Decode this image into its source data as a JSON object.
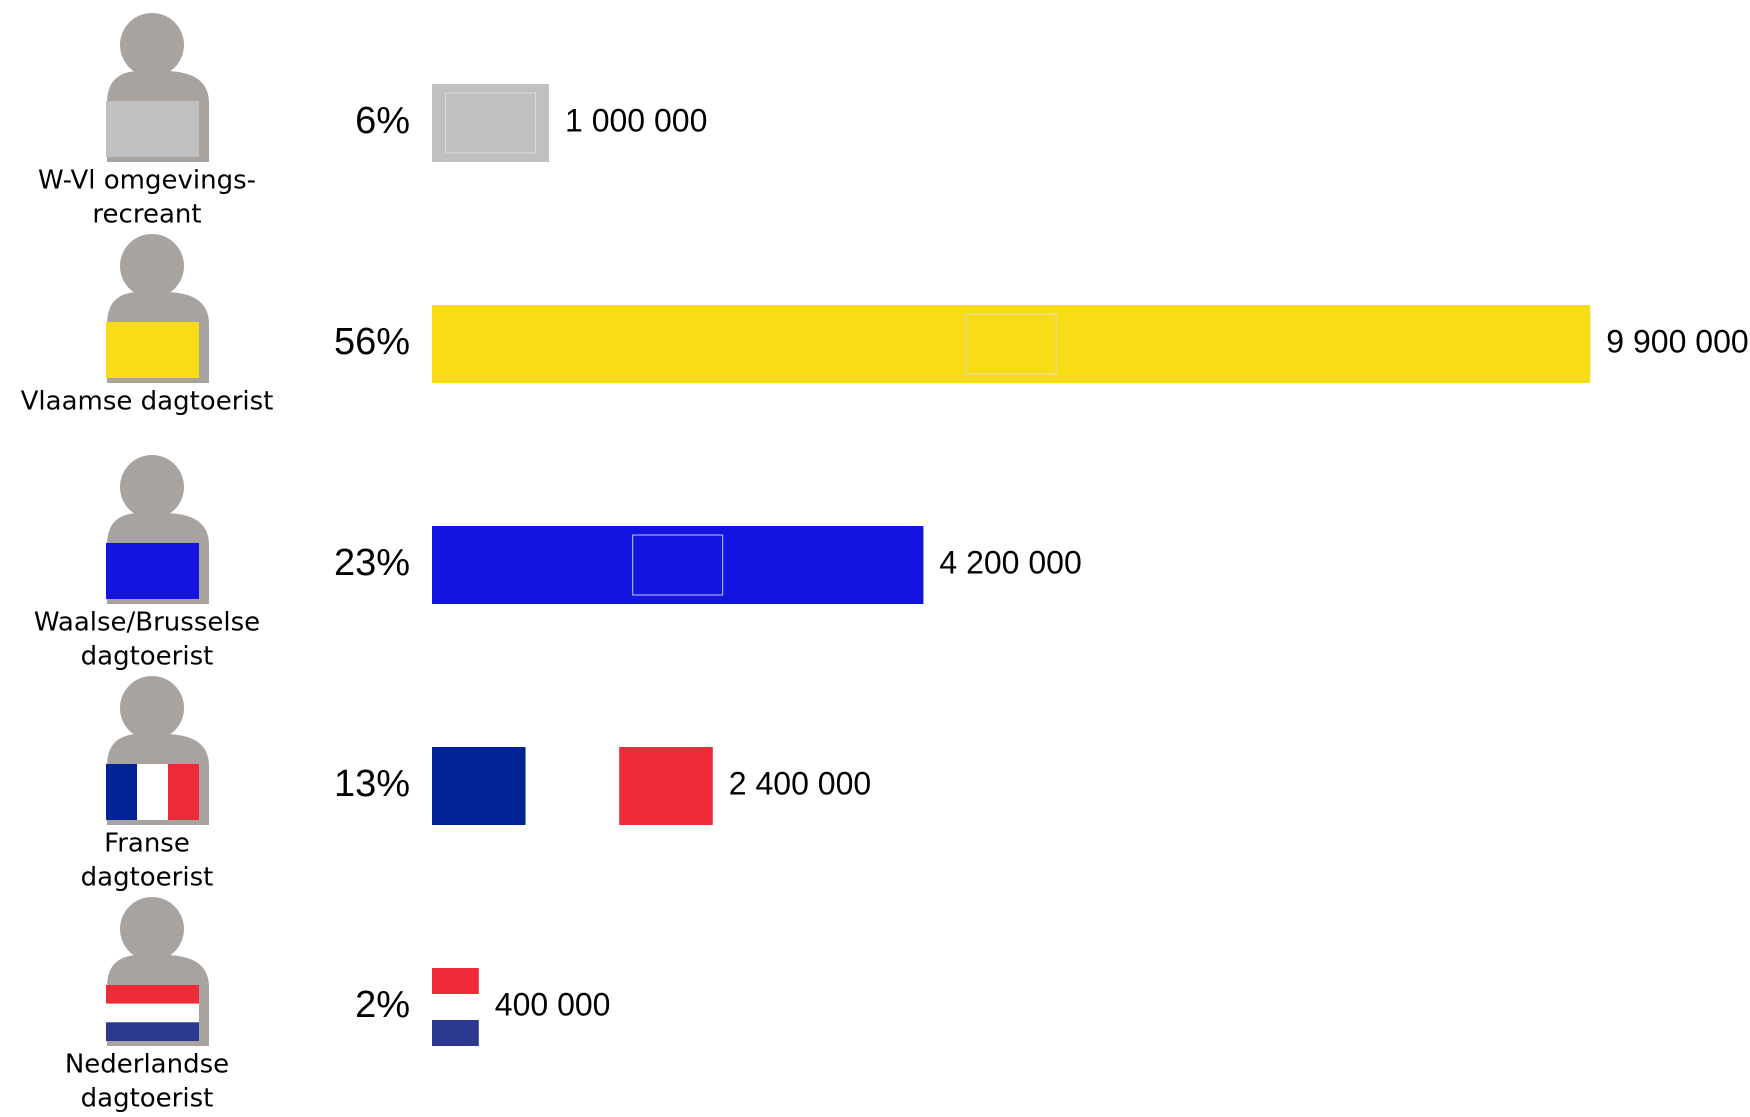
{
  "chart_data": {
    "type": "bar",
    "categories": [
      [
        "W-Vl omgevings-",
        "recreant"
      ],
      [
        "Vlaamse dagtoerist"
      ],
      [
        "Waalse/Brusselse",
        "dagtoerist"
      ],
      [
        "Franse",
        "dagtoerist"
      ],
      [
        "Nederlandse",
        "dagtoerist"
      ]
    ],
    "values": [
      1000000,
      9900000,
      4200000,
      2400000,
      400000
    ],
    "value_labels": [
      "1 000 000",
      "9 900 000",
      "4 200 000",
      "2 400 000",
      "400 000"
    ],
    "percentages": [
      6,
      56,
      23,
      13,
      2
    ],
    "percentage_labels": [
      "6%",
      "56%",
      "23%",
      "13%",
      "2%"
    ],
    "colors": [
      [
        "#c0c0c0"
      ],
      [
        "#f7dc16"
      ],
      [
        "#1414e0"
      ],
      [
        "#002395",
        "#ffffff",
        "#ef2b3a"
      ],
      [
        "#ef2b3a",
        "#ffffff",
        "#2b3990"
      ]
    ],
    "stripes": [
      "none",
      "none",
      "none",
      "vertical",
      "horizontal"
    ]
  }
}
